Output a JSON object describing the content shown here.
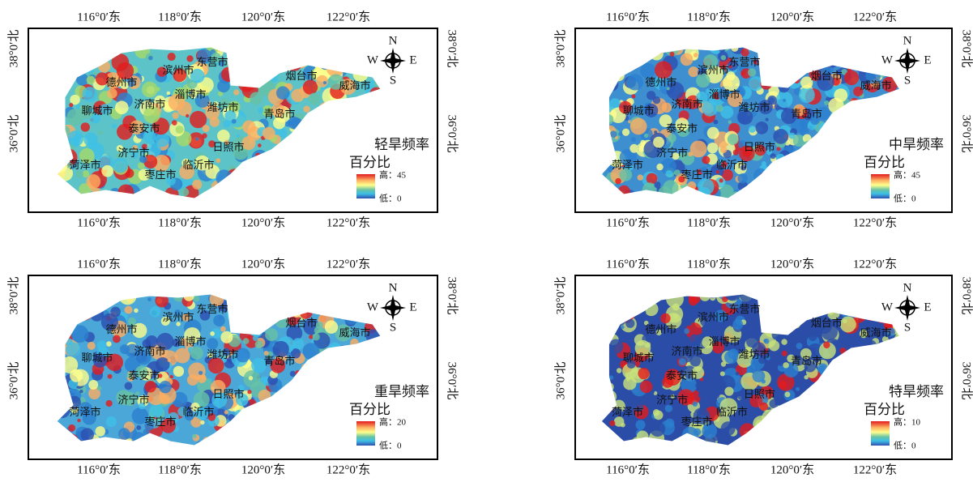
{
  "x_tick_labels": [
    "116°0′东",
    "118°0′东",
    "120°0′东",
    "122°0′东"
  ],
  "y_tick_labels": [
    "38°0′北",
    "36°0′北"
  ],
  "compass": {
    "n": "N",
    "s": "S",
    "e": "E",
    "w": "W"
  },
  "cities": [
    "德州市",
    "滨州市",
    "东营市",
    "烟台市",
    "威海市",
    "淄博市",
    "济南市",
    "聊城市",
    "潍坊市",
    "青岛市",
    "泰安市",
    "济宁市",
    "日照市",
    "菏泽市",
    "枣庄市",
    "临沂市"
  ],
  "panels": [
    {
      "title": [
        "轻旱频率",
        "百分比"
      ],
      "legend": {
        "high": "高：45",
        "low": "低：0"
      }
    },
    {
      "title": [
        "中旱频率",
        "百分比"
      ],
      "legend": {
        "high": "高：45",
        "low": "低：0"
      }
    },
    {
      "title": [
        "重旱频率",
        "百分比"
      ],
      "legend": {
        "high": "高：20",
        "low": "低：0"
      }
    },
    {
      "title": [
        "特旱频率",
        "百分比"
      ],
      "legend": {
        "high": "高：10",
        "low": "低：0"
      }
    }
  ]
}
